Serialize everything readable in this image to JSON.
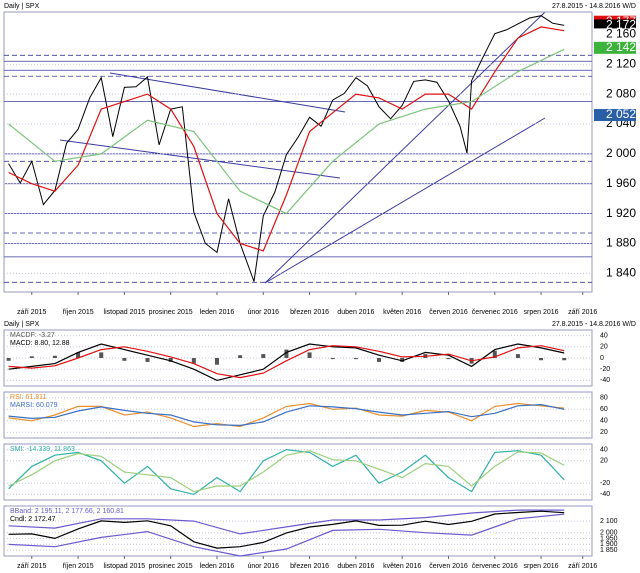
{
  "chart_data": [
    {
      "type": "line",
      "title": "Daily | SPX",
      "subtitle": "27.8.2015 - 14.8.2016 W/D",
      "xlim": [
        -0.1,
        12.6
      ],
      "xticks": [
        {
          "value": 0.5,
          "label": "září 2015"
        },
        {
          "value": 1.5,
          "label": "říjen 2015"
        },
        {
          "value": 2.5,
          "label": "listopad 2015"
        },
        {
          "value": 3.5,
          "label": "prosinec 2015"
        },
        {
          "value": 4.5,
          "label": "leden 2016"
        },
        {
          "value": 5.5,
          "label": "únor 2016"
        },
        {
          "value": 6.5,
          "label": "březen 2016"
        },
        {
          "value": 7.5,
          "label": "duben 2016"
        },
        {
          "value": 8.5,
          "label": "květen 2016"
        },
        {
          "value": 9.5,
          "label": "červen 2016"
        },
        {
          "value": 10.5,
          "label": "červenec 2016"
        },
        {
          "value": 11.5,
          "label": "srpen 2016"
        },
        {
          "value": 12.4,
          "label": "září 2016"
        }
      ],
      "ylim": [
        1815,
        2190
      ],
      "yticks": [
        {
          "value": 2120,
          "label": "2 120"
        },
        {
          "value": 2080,
          "label": "2 080"
        },
        {
          "value": 2040,
          "label": "2 040"
        },
        {
          "value": 2000,
          "label": "2 000"
        },
        {
          "value": 1960,
          "label": "1 960"
        },
        {
          "value": 1920,
          "label": "1 920"
        },
        {
          "value": 1880,
          "label": "1 880"
        },
        {
          "value": 1840,
          "label": "1 840"
        }
      ],
      "levels": [
        2132,
        2124,
        2112,
        2104,
        2070,
        2000,
        1990,
        1960,
        1920,
        1894,
        1880,
        1862,
        1828
      ],
      "price_markers": [
        {
          "value": 2177,
          "label": "2 177",
          "color": "#e01010"
        },
        {
          "value": 2172,
          "label": "2 172",
          "color": "#000000"
        },
        {
          "value": 2160,
          "label": "2 160",
          "color": "#ffffff"
        },
        {
          "value": 2142,
          "label": "2 142",
          "color": "#3cb43c"
        },
        {
          "value": 2052,
          "label": "2 052",
          "color": "#2a5fa8"
        }
      ],
      "series": [
        {
          "color": "#000000",
          "x": [
            0,
            0.25,
            0.5,
            0.75,
            1,
            1.25,
            1.5,
            1.75,
            2,
            2.25,
            2.5,
            2.75,
            3,
            3.25,
            3.5,
            3.75,
            4,
            4.25,
            4.5,
            4.75,
            5,
            5.3,
            5.5,
            5.75,
            6,
            6.25,
            6.5,
            6.75,
            7,
            7.25,
            7.5,
            7.75,
            8,
            8.25,
            8.5,
            8.75,
            9,
            9.25,
            9.5,
            9.75,
            9.9,
            10,
            10.25,
            10.5,
            10.75,
            11,
            11.25,
            11.5,
            11.75,
            12
          ],
          "values": [
            1987,
            1961,
            1990,
            1932,
            1951,
            2014,
            2033,
            2075,
            2102,
            2023,
            2089,
            2090,
            2103,
            2012,
            2060,
            2063,
            1922,
            1880,
            1868,
            1940,
            1880,
            1829,
            1917,
            1949,
            1999,
            2022,
            2049,
            2037,
            2072,
            2081,
            2102,
            2091,
            2063,
            2047,
            2065,
            2097,
            2099,
            2096,
            2071,
            2037,
            2001,
            2098,
            2130,
            2161,
            2166,
            2174,
            2182,
            2185,
            2175,
            2172
          ]
        },
        {
          "color": "#e01010",
          "x": [
            0,
            0.5,
            1,
            1.5,
            2,
            2.5,
            3,
            3.5,
            4,
            4.5,
            5,
            5.5,
            6,
            6.5,
            7,
            7.5,
            8,
            8.5,
            9,
            9.5,
            10,
            10.5,
            11,
            11.5,
            12
          ],
          "values": [
            1975,
            1960,
            1950,
            1985,
            2060,
            2070,
            2080,
            2060,
            2010,
            1920,
            1880,
            1870,
            1945,
            2030,
            2055,
            2080,
            2075,
            2060,
            2080,
            2080,
            2060,
            2110,
            2155,
            2170,
            2165
          ]
        },
        {
          "color": "#7cc47c",
          "x": [
            0,
            1,
            2,
            3,
            4,
            5,
            6,
            7,
            8,
            9,
            10,
            11,
            12
          ],
          "values": [
            2040,
            1990,
            2000,
            2045,
            2030,
            1950,
            1920,
            1990,
            2040,
            2060,
            2070,
            2110,
            2140
          ]
        }
      ]
    },
    {
      "type": "line",
      "title": "Daily | SPX",
      "subtitle": "27.8.2015 - 14.8.2016 W/D",
      "xlim": [
        -0.1,
        12.6
      ],
      "ylim": [
        -50,
        50
      ],
      "yticks": [
        40,
        20,
        0,
        -20,
        -40
      ],
      "series": [
        {
          "name": "MACDF: -3.27",
          "kind": "bars",
          "color": "#555555",
          "x": [
            0,
            0.5,
            1,
            1.5,
            2,
            2.5,
            3,
            3.5,
            4,
            4.5,
            5,
            5.5,
            6,
            6.5,
            7,
            7.5,
            8,
            8.5,
            9,
            9.5,
            10,
            10.5,
            11,
            11.5,
            12
          ],
          "values": [
            -5,
            3,
            4,
            10,
            10,
            -5,
            -7,
            -7,
            -10,
            -12,
            5,
            7,
            15,
            10,
            -2,
            -2,
            -7,
            -7,
            7,
            -2,
            -10,
            13,
            7,
            -4,
            -4
          ]
        },
        {
          "name": "MACD: 8.80, 12.88",
          "color": "#000000",
          "x": [
            0,
            0.5,
            1,
            1.5,
            2,
            2.5,
            3,
            3.5,
            4,
            4.5,
            5,
            5.5,
            6,
            6.5,
            7,
            7.5,
            8,
            8.5,
            9,
            9.5,
            10,
            10.5,
            11,
            11.5,
            12
          ],
          "values": [
            -20,
            -15,
            -10,
            10,
            25,
            15,
            5,
            -5,
            -20,
            -40,
            -30,
            -20,
            10,
            25,
            20,
            18,
            5,
            -5,
            10,
            5,
            -15,
            15,
            25,
            18,
            9
          ]
        },
        {
          "color": "#e01010",
          "x": [
            0,
            0.5,
            1,
            1.5,
            2,
            2.5,
            3,
            3.5,
            4,
            4.5,
            5,
            5.5,
            6,
            6.5,
            7,
            7.5,
            8,
            8.5,
            9,
            9.5,
            10,
            10.5,
            11,
            11.5,
            12
          ],
          "values": [
            -15,
            -18,
            -14,
            0,
            15,
            20,
            12,
            2,
            -10,
            -28,
            -35,
            -27,
            -5,
            15,
            22,
            20,
            12,
            2,
            3,
            7,
            -5,
            2,
            18,
            22,
            13
          ]
        }
      ]
    },
    {
      "type": "line",
      "xlim": [
        -0.1,
        12.6
      ],
      "ylim": [
        10,
        90
      ],
      "yticks": [
        80,
        60,
        40,
        20
      ],
      "series": [
        {
          "name": "RSI: 61.811",
          "color": "#e8902c",
          "x": [
            0,
            0.5,
            1,
            1.5,
            2,
            2.5,
            3,
            3.5,
            4,
            4.5,
            5,
            5.5,
            6,
            6.5,
            7,
            7.5,
            8,
            8.5,
            9,
            9.5,
            10,
            10.5,
            11,
            11.5,
            12
          ],
          "values": [
            45,
            40,
            50,
            65,
            65,
            50,
            55,
            45,
            30,
            35,
            30,
            45,
            65,
            70,
            60,
            62,
            50,
            48,
            58,
            55,
            40,
            65,
            70,
            66,
            62
          ]
        },
        {
          "name": "MARSI: 60.079",
          "color": "#3a6fc4",
          "x": [
            0,
            0.5,
            1,
            1.5,
            2,
            2.5,
            3,
            3.5,
            4,
            4.5,
            5,
            5.5,
            6,
            6.5,
            7,
            7.5,
            8,
            8.5,
            9,
            9.5,
            10,
            10.5,
            11,
            11.5,
            12
          ],
          "values": [
            48,
            44,
            46,
            57,
            64,
            58,
            53,
            50,
            38,
            33,
            32,
            38,
            55,
            66,
            64,
            61,
            55,
            50,
            53,
            56,
            47,
            53,
            66,
            68,
            60
          ]
        }
      ]
    },
    {
      "type": "line",
      "xlim": [
        -0.1,
        12.6
      ],
      "ylim": [
        -50,
        50
      ],
      "yticks": [
        40,
        20,
        -20,
        -40
      ],
      "series": [
        {
          "name": "SMI: -14.339, 11.863",
          "color": "#2eb0a8",
          "x": [
            0,
            0.5,
            1,
            1.5,
            2,
            2.5,
            3,
            3.5,
            4,
            4.5,
            5,
            5.5,
            6,
            6.5,
            7,
            7.5,
            8,
            8.5,
            9,
            9.5,
            10,
            10.5,
            11,
            11.5,
            12
          ],
          "values": [
            -30,
            10,
            30,
            35,
            20,
            -20,
            10,
            -30,
            -40,
            -10,
            -35,
            20,
            40,
            35,
            10,
            30,
            -20,
            0,
            30,
            -10,
            -35,
            35,
            38,
            30,
            -14
          ]
        },
        {
          "color": "#9ccf7c",
          "x": [
            0,
            0.5,
            1,
            1.5,
            2,
            2.5,
            3,
            3.5,
            4,
            4.5,
            5,
            5.5,
            6,
            6.5,
            7,
            7.5,
            8,
            8.5,
            9,
            9.5,
            10,
            10.5,
            11,
            11.5,
            12
          ],
          "values": [
            -25,
            -5,
            20,
            33,
            28,
            0,
            -5,
            -10,
            -35,
            -25,
            -25,
            0,
            30,
            38,
            22,
            20,
            5,
            -10,
            15,
            10,
            -25,
            10,
            36,
            34,
            12
          ]
        }
      ]
    },
    {
      "type": "line",
      "xlim": [
        -0.1,
        12.6
      ],
      "ylim": [
        1800,
        2230
      ],
      "xticks": [
        {
          "value": 0.5,
          "label": "září 2015"
        },
        {
          "value": 1.5,
          "label": "říjen 2015"
        },
        {
          "value": 2.5,
          "label": "listopad 2015"
        },
        {
          "value": 3.5,
          "label": "prosinec 2015"
        },
        {
          "value": 4.5,
          "label": "leden 2016"
        },
        {
          "value": 5.5,
          "label": "únor 2016"
        },
        {
          "value": 6.5,
          "label": "březen 2016"
        },
        {
          "value": 7.5,
          "label": "duben 2016"
        },
        {
          "value": 8.5,
          "label": "květen 2016"
        },
        {
          "value": 9.5,
          "label": "červen 2016"
        },
        {
          "value": 10.5,
          "label": "červenec 2016"
        },
        {
          "value": 11.5,
          "label": "srpen 2016"
        },
        {
          "value": 12.4,
          "label": "září 2016"
        }
      ],
      "yticks": [
        {
          "value": 2100,
          "label": "2 100"
        },
        {
          "value": 2000,
          "label": "2 000"
        },
        {
          "value": 1950,
          "label": "1 950"
        },
        {
          "value": 1900,
          "label": "1 900"
        },
        {
          "value": 1850,
          "label": "1 850"
        }
      ],
      "series": [
        {
          "name": "BBand: 2 195.11, 2 177.66, 2 160.81",
          "color": "#6a5acd",
          "x": [
            0,
            1,
            2,
            3,
            4,
            5,
            6,
            7,
            8,
            9,
            10,
            11,
            12
          ],
          "values": [
            2060,
            2040,
            2120,
            2120,
            2100,
            1990,
            2050,
            2110,
            2110,
            2130,
            2170,
            2195,
            2195
          ]
        },
        {
          "color": "#6a5acd",
          "x": [
            0,
            1,
            2,
            3,
            4,
            5,
            6,
            7,
            8,
            9,
            10,
            11,
            12
          ],
          "values": [
            1900,
            1880,
            1960,
            2010,
            1880,
            1800,
            1860,
            2020,
            2030,
            2000,
            1980,
            2120,
            2160
          ]
        },
        {
          "name": "Cndl: 2 172.47",
          "color": "#000000",
          "x": [
            0,
            0.5,
            1,
            1.5,
            2,
            2.5,
            3,
            3.5,
            4,
            4.5,
            5,
            5.5,
            6,
            6.5,
            7,
            7.5,
            8,
            8.5,
            9,
            9.5,
            10,
            10.5,
            11,
            11.5,
            12
          ],
          "values": [
            1987,
            1990,
            1951,
            2033,
            2102,
            2089,
            2103,
            2060,
            1922,
            1868,
            1880,
            1917,
            1999,
            2049,
            2072,
            2102,
            2063,
            2065,
            2099,
            2071,
            2098,
            2161,
            2174,
            2185,
            2172
          ]
        }
      ]
    }
  ]
}
